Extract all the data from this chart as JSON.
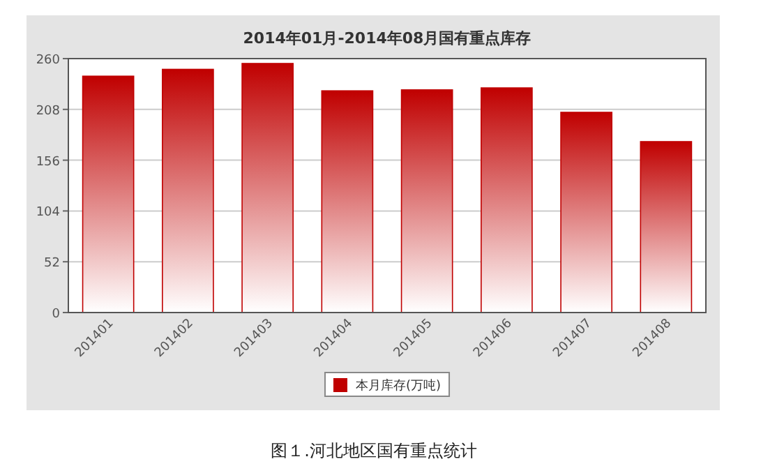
{
  "chart_data": {
    "type": "bar",
    "title": "2014年01月-2014年08月国有重点库存",
    "categories": [
      "201401",
      "201402",
      "201403",
      "201404",
      "201405",
      "201406",
      "201407",
      "201408"
    ],
    "series": [
      {
        "name": "本月库存(万吨)",
        "color": "#c00000",
        "values": [
          242,
          249,
          255,
          227,
          228,
          230,
          205,
          175
        ]
      }
    ],
    "ylim": [
      0,
      260
    ],
    "yticks": [
      0,
      52,
      104,
      156,
      208,
      260
    ],
    "grid": "y",
    "legend": "bottom",
    "annotations": [
      "图１.河北地区国有重点统计"
    ]
  }
}
